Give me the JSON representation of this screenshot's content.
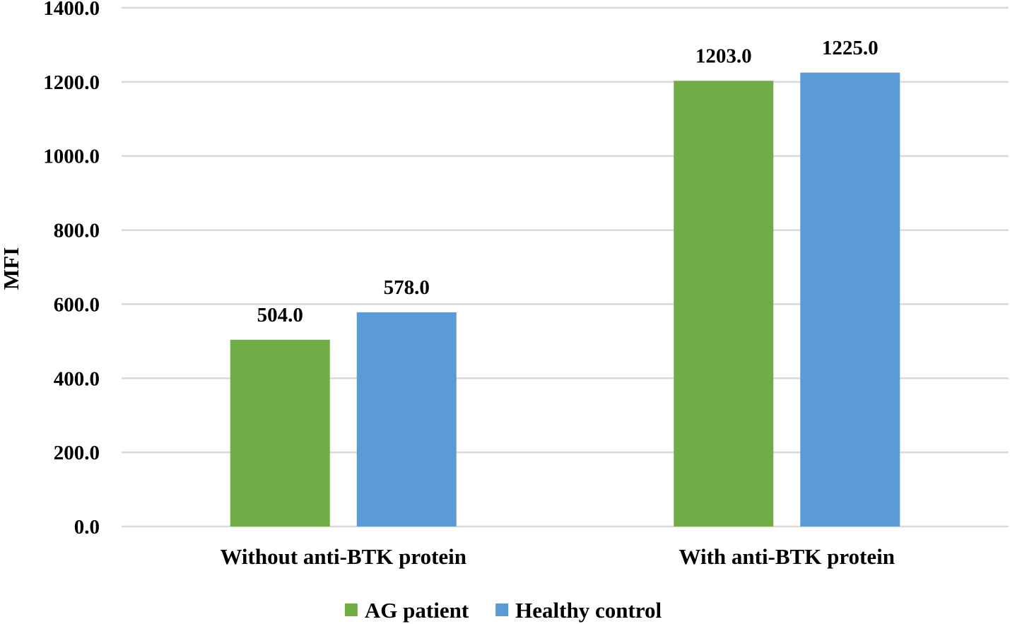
{
  "chart_data": {
    "type": "bar",
    "title": "",
    "xlabel": "",
    "ylabel": "MFI",
    "ylim": [
      0,
      1400
    ],
    "yticks": [
      0,
      200,
      400,
      600,
      800,
      1000,
      1200,
      1400
    ],
    "tick_format_decimals": 1,
    "grid": true,
    "legend_position": "bottom",
    "categories": [
      "Without anti-BTK protein",
      "With anti-BTK protein"
    ],
    "series": [
      {
        "name": "AG patient",
        "color": "#70ad47",
        "values": [
          504.0,
          1203.0
        ]
      },
      {
        "name": "Healthy control",
        "color": "#5b9bd5",
        "values": [
          578.0,
          1225.0
        ]
      }
    ]
  }
}
